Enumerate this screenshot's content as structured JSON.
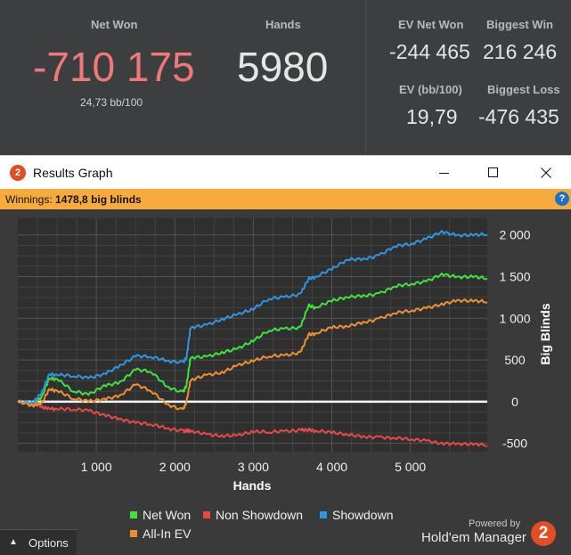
{
  "stats": {
    "net_won": {
      "label": "Net Won",
      "value": "-710 175",
      "sub": "24,73 bb/100"
    },
    "hands": {
      "label": "Hands",
      "value": "5980"
    },
    "ev_net_won": {
      "label": "EV Net Won",
      "value": "-244 465"
    },
    "biggest_win": {
      "label": "Biggest Win",
      "value": "216 246"
    },
    "ev_bb100": {
      "label": "EV (bb/100)",
      "value": "19,79"
    },
    "biggest_loss": {
      "label": "Biggest Loss",
      "value": "-476 435"
    }
  },
  "window": {
    "title": "Results Graph",
    "app_icon": "2",
    "winnings_label": "Winnings:",
    "winnings_value": "1478,8 big blinds",
    "help": "?"
  },
  "options": {
    "label": "Options"
  },
  "branding": {
    "powered": "Powered by",
    "product": "Hold'em Manager",
    "badge": "2"
  },
  "colors": {
    "net_won": "#3fe03f",
    "non_showdown": "#e84848",
    "showdown": "#2f95e3",
    "all_in_ev": "#ef8f32",
    "negative_value": "#f07878",
    "accent_bar": "#f6ab3c"
  },
  "chart_data": {
    "type": "line",
    "xlabel": "Hands",
    "ylabel": "Big Blinds",
    "xlim": [
      0,
      5980
    ],
    "ylim": [
      -600,
      2200
    ],
    "xticks": [
      1000,
      2000,
      3000,
      4000,
      5000
    ],
    "yticks": [
      -500,
      0,
      500,
      1000,
      1500,
      2000
    ],
    "xtick_labels": [
      "1 000",
      "2 000",
      "3 000",
      "4 000",
      "5 000"
    ],
    "ytick_labels": [
      "-500",
      "0",
      "500",
      "1 000",
      "1 500",
      "2 000"
    ],
    "grid": true,
    "legend_position": "bottom",
    "x": [
      0,
      200,
      300,
      400,
      500,
      700,
      900,
      1100,
      1300,
      1500,
      1700,
      1900,
      2100,
      2150,
      2200,
      2400,
      2600,
      2800,
      3000,
      3200,
      3400,
      3600,
      3700,
      3800,
      4000,
      4200,
      4400,
      4600,
      4800,
      5000,
      5200,
      5400,
      5600,
      5800,
      5980
    ],
    "series": [
      {
        "name": "Net Won",
        "key": "net_won",
        "values": [
          0,
          -40,
          50,
          280,
          270,
          120,
          80,
          200,
          240,
          380,
          350,
          180,
          120,
          200,
          520,
          540,
          600,
          640,
          720,
          850,
          880,
          900,
          1150,
          1130,
          1200,
          1250,
          1280,
          1300,
          1380,
          1400,
          1440,
          1540,
          1500,
          1490,
          1470
        ]
      },
      {
        "name": "Non Showdown",
        "key": "non_showdown",
        "values": [
          0,
          -30,
          -60,
          -80,
          -90,
          -100,
          -110,
          -150,
          -200,
          -260,
          -280,
          -320,
          -340,
          -350,
          -360,
          -390,
          -400,
          -400,
          -370,
          -370,
          -350,
          -330,
          -340,
          -350,
          -380,
          -400,
          -410,
          -420,
          -440,
          -460,
          -470,
          -490,
          -500,
          -520,
          -530
        ]
      },
      {
        "name": "Showdown",
        "key": "showdown",
        "values": [
          0,
          -20,
          100,
          330,
          320,
          300,
          280,
          340,
          440,
          540,
          530,
          490,
          480,
          530,
          880,
          920,
          1000,
          1050,
          1100,
          1230,
          1260,
          1300,
          1470,
          1500,
          1580,
          1700,
          1720,
          1760,
          1860,
          1880,
          1950,
          2050,
          2000,
          1990,
          2000
        ]
      },
      {
        "name": "All-In EV",
        "key": "all_in_ev",
        "values": [
          0,
          -60,
          -20,
          150,
          130,
          30,
          0,
          40,
          80,
          200,
          120,
          -30,
          -90,
          0,
          250,
          320,
          360,
          440,
          480,
          540,
          560,
          600,
          800,
          820,
          880,
          900,
          960,
          1000,
          1060,
          1080,
          1120,
          1180,
          1220,
          1200,
          1190
        ]
      }
    ]
  }
}
